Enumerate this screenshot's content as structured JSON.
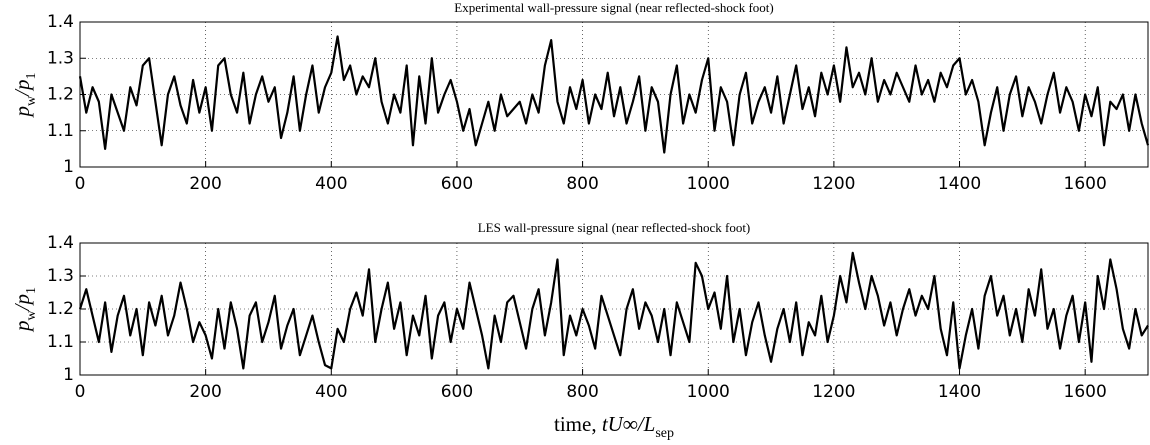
{
  "chart_data": [
    {
      "type": "line",
      "title": "Experimental wall-pressure signal (near reflected-shock foot)",
      "ylabel": [
        {
          "text": "p"
        },
        {
          "text": "w",
          "sub": true
        },
        {
          "text": "/p"
        },
        {
          "text": "1",
          "sub": true
        }
      ],
      "x": [
        0,
        10,
        20,
        30,
        40,
        50,
        60,
        70,
        80,
        90,
        100,
        110,
        120,
        130,
        140,
        150,
        160,
        170,
        180,
        190,
        200,
        210,
        220,
        230,
        240,
        250,
        260,
        270,
        280,
        290,
        300,
        310,
        320,
        330,
        340,
        350,
        360,
        370,
        380,
        390,
        400,
        410,
        420,
        430,
        440,
        450,
        460,
        470,
        480,
        490,
        500,
        510,
        520,
        530,
        540,
        550,
        560,
        570,
        580,
        590,
        600,
        610,
        620,
        630,
        640,
        650,
        660,
        670,
        680,
        690,
        700,
        710,
        720,
        730,
        740,
        750,
        760,
        770,
        780,
        790,
        800,
        810,
        820,
        830,
        840,
        850,
        860,
        870,
        880,
        890,
        900,
        910,
        920,
        930,
        940,
        950,
        960,
        970,
        980,
        990,
        1000,
        1010,
        1020,
        1030,
        1040,
        1050,
        1060,
        1070,
        1080,
        1090,
        1100,
        1110,
        1120,
        1130,
        1140,
        1150,
        1160,
        1170,
        1180,
        1190,
        1200,
        1210,
        1220,
        1230,
        1240,
        1250,
        1260,
        1270,
        1280,
        1290,
        1300,
        1310,
        1320,
        1330,
        1340,
        1350,
        1360,
        1370,
        1380,
        1390,
        1400,
        1410,
        1420,
        1430,
        1440,
        1450,
        1460,
        1470,
        1480,
        1490,
        1500,
        1510,
        1520,
        1530,
        1540,
        1550,
        1560,
        1570,
        1580,
        1590,
        1600,
        1610,
        1620,
        1630,
        1640,
        1650,
        1660,
        1670,
        1680,
        1690,
        1700
      ],
      "series": [
        {
          "color": "#000000",
          "values": [
            1.25,
            1.15,
            1.22,
            1.18,
            1.05,
            1.2,
            1.15,
            1.1,
            1.22,
            1.17,
            1.28,
            1.3,
            1.18,
            1.06,
            1.2,
            1.25,
            1.17,
            1.12,
            1.24,
            1.15,
            1.22,
            1.1,
            1.28,
            1.3,
            1.2,
            1.15,
            1.26,
            1.12,
            1.2,
            1.25,
            1.18,
            1.22,
            1.08,
            1.15,
            1.25,
            1.1,
            1.2,
            1.28,
            1.15,
            1.22,
            1.26,
            1.36,
            1.24,
            1.28,
            1.2,
            1.25,
            1.22,
            1.3,
            1.18,
            1.12,
            1.2,
            1.15,
            1.28,
            1.06,
            1.25,
            1.12,
            1.3,
            1.15,
            1.2,
            1.24,
            1.18,
            1.1,
            1.16,
            1.06,
            1.12,
            1.18,
            1.1,
            1.2,
            1.14,
            1.16,
            1.18,
            1.12,
            1.2,
            1.15,
            1.28,
            1.35,
            1.18,
            1.12,
            1.22,
            1.16,
            1.24,
            1.12,
            1.2,
            1.16,
            1.26,
            1.14,
            1.22,
            1.12,
            1.18,
            1.25,
            1.1,
            1.22,
            1.18,
            1.04,
            1.2,
            1.28,
            1.12,
            1.2,
            1.15,
            1.24,
            1.3,
            1.1,
            1.22,
            1.18,
            1.06,
            1.2,
            1.26,
            1.12,
            1.18,
            1.22,
            1.15,
            1.25,
            1.12,
            1.2,
            1.28,
            1.16,
            1.22,
            1.14,
            1.26,
            1.2,
            1.28,
            1.18,
            1.33,
            1.22,
            1.26,
            1.2,
            1.3,
            1.18,
            1.24,
            1.2,
            1.26,
            1.22,
            1.18,
            1.28,
            1.2,
            1.24,
            1.18,
            1.26,
            1.22,
            1.28,
            1.3,
            1.2,
            1.24,
            1.18,
            1.06,
            1.15,
            1.22,
            1.1,
            1.2,
            1.25,
            1.14,
            1.22,
            1.18,
            1.12,
            1.2,
            1.26,
            1.15,
            1.22,
            1.18,
            1.1,
            1.2,
            1.14,
            1.22,
            1.06,
            1.18,
            1.16,
            1.2,
            1.1,
            1.2,
            1.12,
            1.06
          ]
        }
      ],
      "xlim": [
        0,
        1700
      ],
      "ylim": [
        1,
        1.4
      ],
      "xticks": [
        0,
        200,
        400,
        600,
        800,
        1000,
        1200,
        1400,
        1600
      ],
      "yticks": [
        1,
        1.1,
        1.2,
        1.3,
        1.4
      ],
      "grid": true
    },
    {
      "type": "line",
      "title": "LES wall-pressure signal (near reflected-shock foot)",
      "ylabel": [
        {
          "text": "p"
        },
        {
          "text": "w",
          "sub": true
        },
        {
          "text": "/p"
        },
        {
          "text": "1",
          "sub": true
        }
      ],
      "xlabel": [
        {
          "text": "time, "
        },
        {
          "text": "tU∞/L",
          "italic": true
        },
        {
          "text": "sep",
          "sub": true
        }
      ],
      "x": [
        0,
        10,
        20,
        30,
        40,
        50,
        60,
        70,
        80,
        90,
        100,
        110,
        120,
        130,
        140,
        150,
        160,
        170,
        180,
        190,
        200,
        210,
        220,
        230,
        240,
        250,
        260,
        270,
        280,
        290,
        300,
        310,
        320,
        330,
        340,
        350,
        360,
        370,
        380,
        390,
        400,
        410,
        420,
        430,
        440,
        450,
        460,
        470,
        480,
        490,
        500,
        510,
        520,
        530,
        540,
        550,
        560,
        570,
        580,
        590,
        600,
        610,
        620,
        630,
        640,
        650,
        660,
        670,
        680,
        690,
        700,
        710,
        720,
        730,
        740,
        750,
        760,
        770,
        780,
        790,
        800,
        810,
        820,
        830,
        840,
        850,
        860,
        870,
        880,
        890,
        900,
        910,
        920,
        930,
        940,
        950,
        960,
        970,
        980,
        990,
        1000,
        1010,
        1020,
        1030,
        1040,
        1050,
        1060,
        1070,
        1080,
        1090,
        1100,
        1110,
        1120,
        1130,
        1140,
        1150,
        1160,
        1170,
        1180,
        1190,
        1200,
        1210,
        1220,
        1230,
        1240,
        1250,
        1260,
        1270,
        1280,
        1290,
        1300,
        1310,
        1320,
        1330,
        1340,
        1350,
        1360,
        1370,
        1380,
        1390,
        1400,
        1410,
        1420,
        1430,
        1440,
        1450,
        1460,
        1470,
        1480,
        1490,
        1500,
        1510,
        1520,
        1530,
        1540,
        1550,
        1560,
        1570,
        1580,
        1590,
        1600,
        1610,
        1620,
        1630,
        1640,
        1650,
        1660,
        1670,
        1680,
        1690,
        1700
      ],
      "series": [
        {
          "color": "#000000",
          "values": [
            1.2,
            1.26,
            1.18,
            1.1,
            1.22,
            1.07,
            1.18,
            1.24,
            1.12,
            1.2,
            1.06,
            1.22,
            1.15,
            1.24,
            1.12,
            1.18,
            1.28,
            1.2,
            1.1,
            1.16,
            1.12,
            1.05,
            1.2,
            1.08,
            1.22,
            1.14,
            1.02,
            1.18,
            1.22,
            1.1,
            1.16,
            1.24,
            1.08,
            1.15,
            1.2,
            1.06,
            1.12,
            1.18,
            1.1,
            1.03,
            1.02,
            1.14,
            1.1,
            1.2,
            1.25,
            1.18,
            1.32,
            1.1,
            1.2,
            1.28,
            1.14,
            1.22,
            1.06,
            1.18,
            1.12,
            1.24,
            1.05,
            1.18,
            1.22,
            1.1,
            1.2,
            1.14,
            1.28,
            1.2,
            1.12,
            1.02,
            1.18,
            1.1,
            1.22,
            1.24,
            1.16,
            1.08,
            1.2,
            1.26,
            1.12,
            1.22,
            1.35,
            1.06,
            1.18,
            1.12,
            1.2,
            1.15,
            1.08,
            1.24,
            1.18,
            1.12,
            1.06,
            1.2,
            1.26,
            1.14,
            1.22,
            1.18,
            1.1,
            1.2,
            1.06,
            1.22,
            1.16,
            1.1,
            1.34,
            1.3,
            1.2,
            1.25,
            1.14,
            1.3,
            1.1,
            1.2,
            1.06,
            1.16,
            1.22,
            1.12,
            1.04,
            1.14,
            1.2,
            1.1,
            1.22,
            1.06,
            1.16,
            1.12,
            1.24,
            1.1,
            1.18,
            1.3,
            1.22,
            1.37,
            1.28,
            1.2,
            1.3,
            1.24,
            1.15,
            1.22,
            1.12,
            1.2,
            1.26,
            1.18,
            1.24,
            1.2,
            1.3,
            1.14,
            1.06,
            1.22,
            1.02,
            1.12,
            1.2,
            1.08,
            1.24,
            1.3,
            1.18,
            1.24,
            1.12,
            1.2,
            1.1,
            1.26,
            1.18,
            1.32,
            1.14,
            1.2,
            1.08,
            1.18,
            1.24,
            1.1,
            1.22,
            1.04,
            1.3,
            1.2,
            1.35,
            1.26,
            1.14,
            1.08,
            1.2,
            1.12,
            1.15
          ]
        }
      ],
      "xlim": [
        0,
        1700
      ],
      "ylim": [
        1,
        1.4
      ],
      "xticks": [
        0,
        200,
        400,
        600,
        800,
        1000,
        1200,
        1400,
        1600
      ],
      "yticks": [
        1,
        1.1,
        1.2,
        1.3,
        1.4
      ],
      "grid": true
    }
  ]
}
